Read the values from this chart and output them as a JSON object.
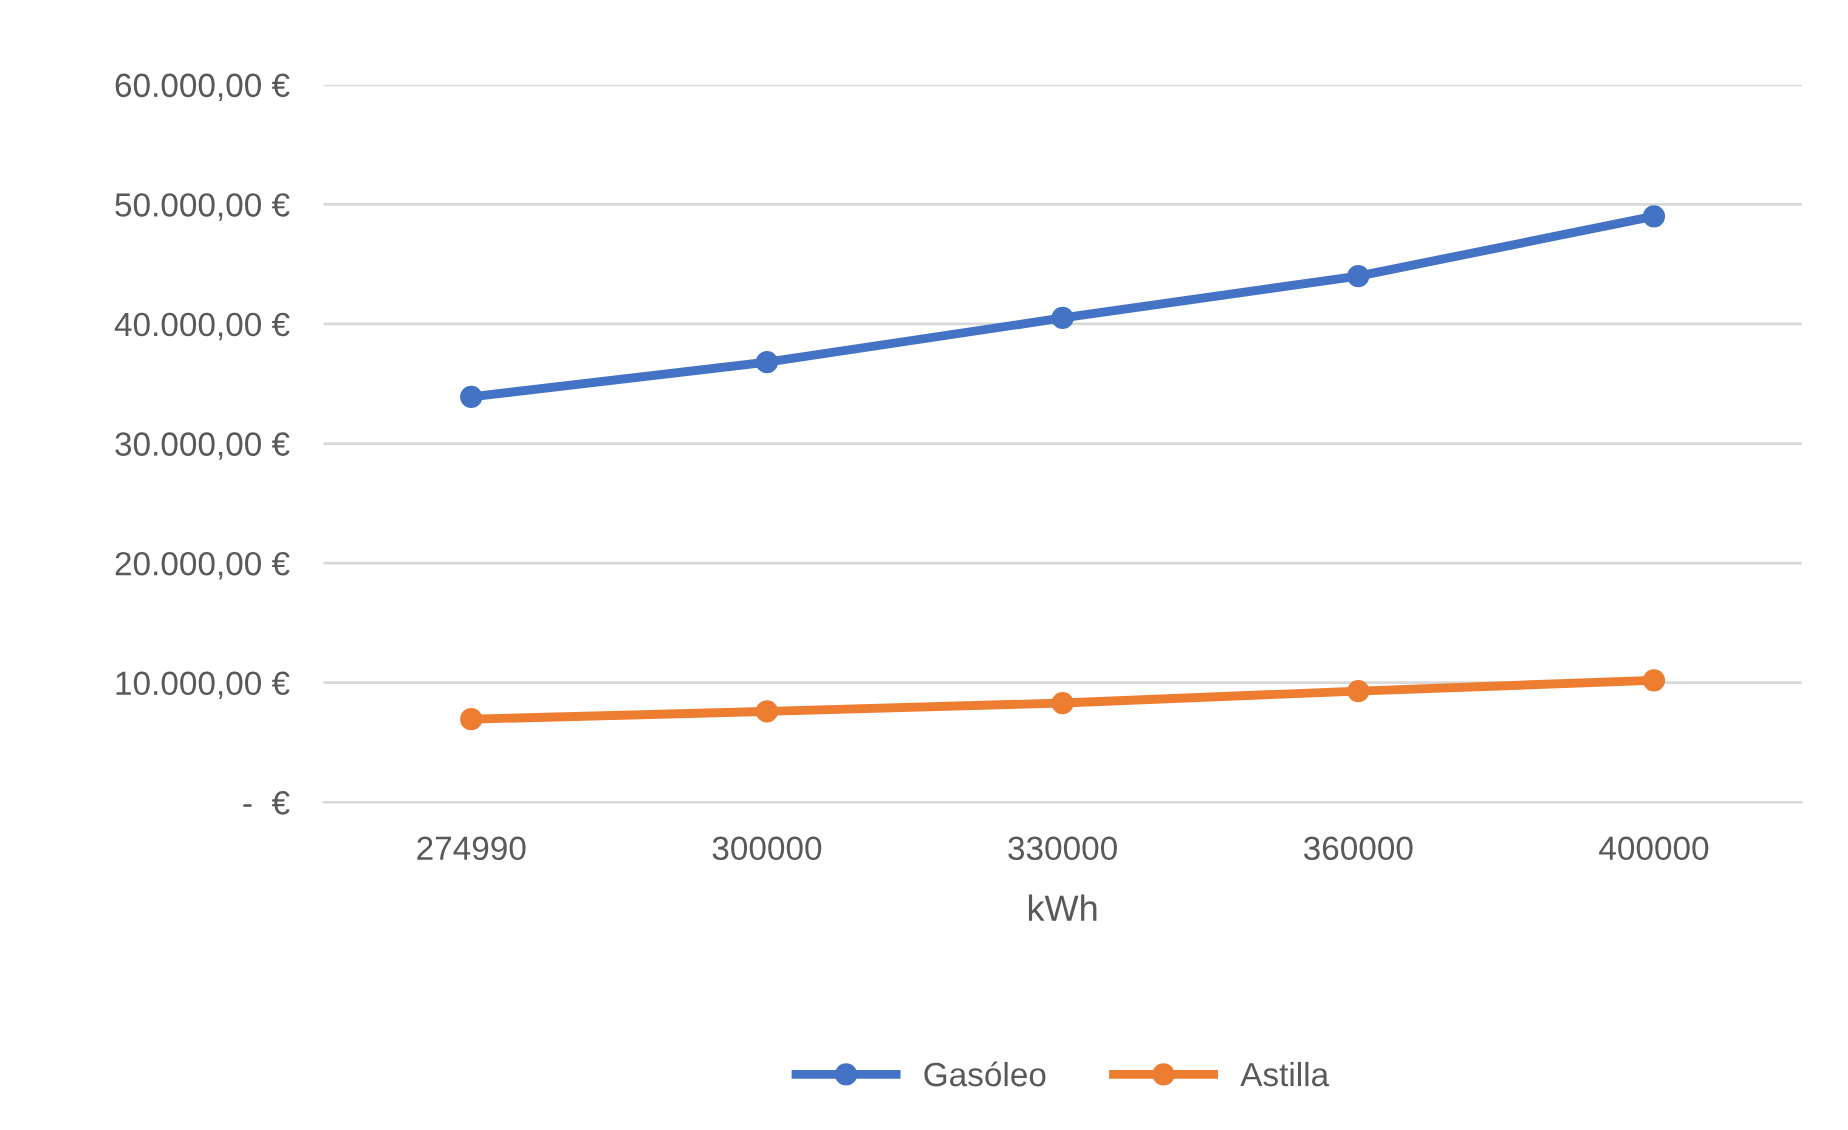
{
  "chart_data": {
    "type": "line",
    "xlabel": "kWh",
    "categories": [
      "274990",
      "300000",
      "330000",
      "360000",
      "400000"
    ],
    "series": [
      {
        "name": "Gasóleo",
        "color": "#4472c4",
        "values": [
          33900,
          36800,
          40500,
          44000,
          49000
        ]
      },
      {
        "name": "Astilla",
        "color": "#ed7d31",
        "values": [
          6950,
          7600,
          8300,
          9300,
          10200
        ]
      }
    ],
    "ylim": [
      0,
      60000
    ],
    "yticks": [
      {
        "value": 0,
        "label": "-  €"
      },
      {
        "value": 10000,
        "label": "10.000,00 €"
      },
      {
        "value": 20000,
        "label": "20.000,00 €"
      },
      {
        "value": 30000,
        "label": "30.000,00 €"
      },
      {
        "value": 40000,
        "label": "40.000,00 €"
      },
      {
        "value": 50000,
        "label": "50.000,00 €"
      },
      {
        "value": 60000,
        "label": "60.000,00 €"
      }
    ],
    "grid": "y",
    "legend": "bottom",
    "marker": "circle",
    "line_style": "solid"
  }
}
